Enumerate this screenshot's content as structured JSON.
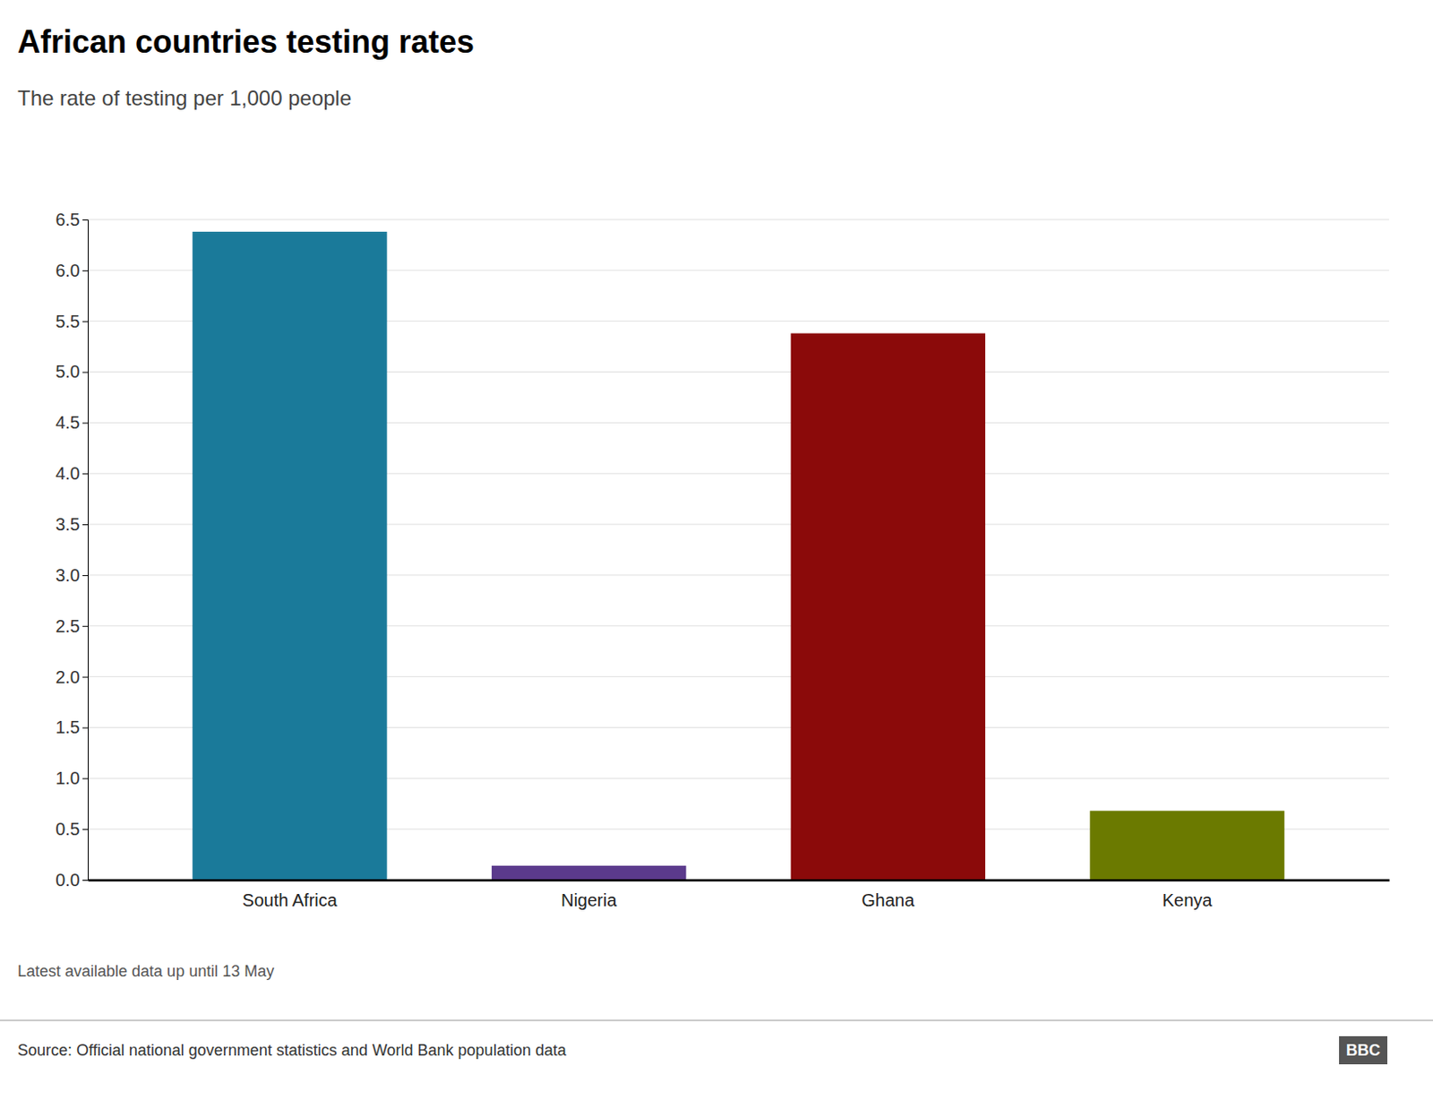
{
  "chart_data": {
    "type": "bar",
    "title": "African countries testing rates",
    "subtitle": "The rate of testing per 1,000 people",
    "categories": [
      "South Africa",
      "Nigeria",
      "Ghana",
      "Kenya"
    ],
    "values": [
      6.38,
      0.14,
      5.38,
      0.68
    ],
    "colors": [
      "#1a7a9a",
      "#5b3a8c",
      "#8b0a0a",
      "#6b7a00"
    ],
    "ylim": [
      0,
      6.5
    ],
    "yticks": [
      {
        "value": 0.0,
        "label": "0.0"
      },
      0.5,
      {
        "value": 1.0,
        "label": "1.0"
      },
      1.5,
      {
        "value": 2.0,
        "label": "2.0"
      },
      2.5,
      {
        "value": 3.0,
        "label": "3.0"
      },
      3.5,
      {
        "value": 4.0,
        "label": "4.0"
      },
      4.5,
      {
        "value": 5.0,
        "label": "5.0"
      },
      5.5,
      {
        "value": 6.0,
        "label": "6.0"
      },
      6.5
    ],
    "grid": true,
    "annotations": [
      "Latest available data up until 13 May",
      "Source: Official national government statistics and World Bank population data",
      "BBC"
    ]
  }
}
